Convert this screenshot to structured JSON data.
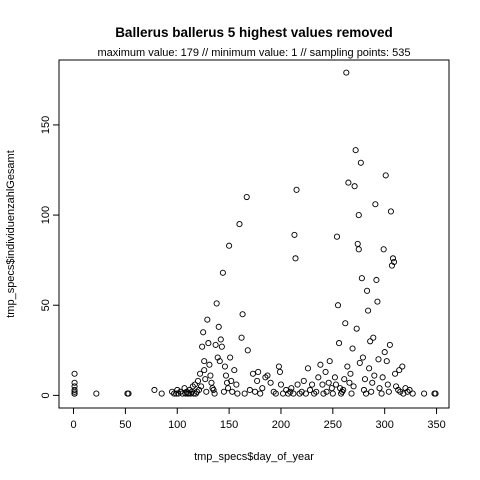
{
  "chart_data": {
    "type": "scatter",
    "title": "Ballerus ballerus  5 highest values removed",
    "subtitle": "maximum value: 179  //  minimum value: 1  // sampling points: 535",
    "xlabel": "tmp_specs$day_of_year",
    "ylabel": "tmp_specs$individuenzahlGesamt",
    "xlim": [
      -14,
      362
    ],
    "ylim": [
      -7,
      186
    ],
    "xticks": [
      0,
      50,
      100,
      150,
      200,
      250,
      300,
      350
    ],
    "yticks": [
      0,
      50,
      100,
      150
    ],
    "grid": false,
    "points": [
      [
        1,
        12
      ],
      [
        1,
        7
      ],
      [
        1,
        5
      ],
      [
        1,
        3
      ],
      [
        1,
        2
      ],
      [
        1,
        1
      ],
      [
        1,
        1
      ],
      [
        22,
        1
      ],
      [
        52,
        1
      ],
      [
        53,
        1
      ],
      [
        78,
        3
      ],
      [
        85,
        1
      ],
      [
        95,
        2
      ],
      [
        97,
        1
      ],
      [
        99,
        1
      ],
      [
        100,
        3
      ],
      [
        101,
        1
      ],
      [
        103,
        2
      ],
      [
        105,
        1
      ],
      [
        107,
        4
      ],
      [
        108,
        1
      ],
      [
        109,
        2
      ],
      [
        110,
        1
      ],
      [
        111,
        1
      ],
      [
        112,
        3
      ],
      [
        113,
        1
      ],
      [
        114,
        2
      ],
      [
        115,
        5
      ],
      [
        116,
        1
      ],
      [
        117,
        6
      ],
      [
        118,
        1
      ],
      [
        119,
        2
      ],
      [
        120,
        8
      ],
      [
        121,
        3
      ],
      [
        122,
        12
      ],
      [
        123,
        5
      ],
      [
        124,
        27
      ],
      [
        125,
        35
      ],
      [
        126,
        19
      ],
      [
        126,
        14
      ],
      [
        127,
        9
      ],
      [
        128,
        2
      ],
      [
        129,
        42
      ],
      [
        130,
        29
      ],
      [
        131,
        17
      ],
      [
        132,
        11
      ],
      [
        133,
        7
      ],
      [
        134,
        4
      ],
      [
        135,
        3
      ],
      [
        136,
        1
      ],
      [
        137,
        28
      ],
      [
        138,
        51
      ],
      [
        139,
        21
      ],
      [
        140,
        38
      ],
      [
        141,
        19
      ],
      [
        142,
        31
      ],
      [
        143,
        27
      ],
      [
        144,
        68
      ],
      [
        145,
        2
      ],
      [
        146,
        16
      ],
      [
        147,
        11
      ],
      [
        148,
        7
      ],
      [
        149,
        4
      ],
      [
        150,
        83
      ],
      [
        151,
        21
      ],
      [
        152,
        8
      ],
      [
        153,
        2
      ],
      [
        155,
        14
      ],
      [
        157,
        6
      ],
      [
        158,
        1
      ],
      [
        160,
        95
      ],
      [
        162,
        32
      ],
      [
        163,
        45
      ],
      [
        165,
        1
      ],
      [
        167,
        110
      ],
      [
        168,
        25
      ],
      [
        170,
        3
      ],
      [
        173,
        12
      ],
      [
        175,
        2
      ],
      [
        177,
        8
      ],
      [
        178,
        13
      ],
      [
        180,
        1
      ],
      [
        182,
        4
      ],
      [
        185,
        10
      ],
      [
        187,
        11
      ],
      [
        190,
        7
      ],
      [
        193,
        2
      ],
      [
        195,
        1
      ],
      [
        198,
        16
      ],
      [
        199,
        13
      ],
      [
        200,
        6
      ],
      [
        202,
        1
      ],
      [
        205,
        3
      ],
      [
        207,
        1
      ],
      [
        209,
        2
      ],
      [
        210,
        4
      ],
      [
        212,
        1
      ],
      [
        213,
        89
      ],
      [
        214,
        76
      ],
      [
        215,
        114
      ],
      [
        216,
        6
      ],
      [
        218,
        1
      ],
      [
        220,
        2
      ],
      [
        222,
        8
      ],
      [
        224,
        1
      ],
      [
        226,
        15
      ],
      [
        228,
        3
      ],
      [
        230,
        6
      ],
      [
        232,
        1
      ],
      [
        234,
        2
      ],
      [
        236,
        10
      ],
      [
        238,
        17
      ],
      [
        240,
        6
      ],
      [
        241,
        1
      ],
      [
        243,
        13
      ],
      [
        244,
        2
      ],
      [
        246,
        7
      ],
      [
        247,
        19
      ],
      [
        249,
        4
      ],
      [
        250,
        1
      ],
      [
        252,
        10
      ],
      [
        253,
        6
      ],
      [
        254,
        88
      ],
      [
        255,
        50
      ],
      [
        256,
        29
      ],
      [
        257,
        4
      ],
      [
        258,
        1
      ],
      [
        259,
        2
      ],
      [
        260,
        3
      ],
      [
        261,
        9
      ],
      [
        262,
        40
      ],
      [
        263,
        179
      ],
      [
        264,
        16
      ],
      [
        265,
        118
      ],
      [
        266,
        7
      ],
      [
        267,
        12
      ],
      [
        268,
        1
      ],
      [
        269,
        26
      ],
      [
        270,
        5
      ],
      [
        271,
        116
      ],
      [
        272,
        136
      ],
      [
        273,
        37
      ],
      [
        274,
        84
      ],
      [
        275,
        100
      ],
      [
        275,
        81
      ],
      [
        276,
        18
      ],
      [
        277,
        129
      ],
      [
        278,
        65
      ],
      [
        279,
        21
      ],
      [
        280,
        3
      ],
      [
        281,
        9
      ],
      [
        282,
        1
      ],
      [
        283,
        58
      ],
      [
        284,
        47
      ],
      [
        285,
        15
      ],
      [
        286,
        30
      ],
      [
        287,
        2
      ],
      [
        288,
        7
      ],
      [
        289,
        32
      ],
      [
        290,
        11
      ],
      [
        291,
        106
      ],
      [
        292,
        64
      ],
      [
        293,
        52
      ],
      [
        294,
        20
      ],
      [
        295,
        4
      ],
      [
        297,
        1
      ],
      [
        298,
        10
      ],
      [
        299,
        81
      ],
      [
        300,
        24
      ],
      [
        301,
        122
      ],
      [
        302,
        19
      ],
      [
        303,
        6
      ],
      [
        304,
        2
      ],
      [
        305,
        28
      ],
      [
        306,
        102
      ],
      [
        307,
        72
      ],
      [
        308,
        76
      ],
      [
        309,
        74
      ],
      [
        310,
        12
      ],
      [
        311,
        5
      ],
      [
        313,
        3
      ],
      [
        314,
        14
      ],
      [
        315,
        2
      ],
      [
        317,
        16
      ],
      [
        318,
        1
      ],
      [
        320,
        4
      ],
      [
        322,
        2
      ],
      [
        324,
        3
      ],
      [
        327,
        1
      ],
      [
        338,
        1
      ],
      [
        348,
        1
      ],
      [
        349,
        1
      ]
    ]
  }
}
